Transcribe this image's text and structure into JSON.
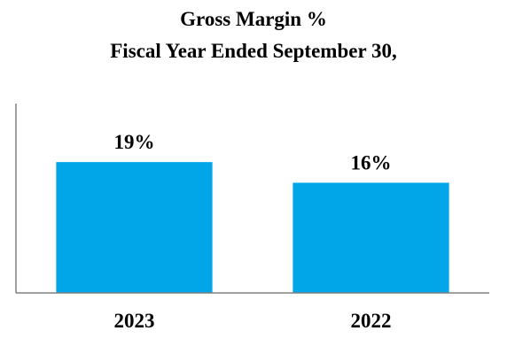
{
  "chart_data": {
    "type": "bar",
    "title": "Gross Margin %",
    "subtitle": "Fiscal Year Ended September 30,",
    "categories": [
      "2023",
      "2022"
    ],
    "values": [
      19,
      16
    ],
    "data_labels": [
      "19%",
      "16%"
    ],
    "ylim": [
      0,
      27.5
    ],
    "xlabel": "",
    "ylabel": "",
    "grid": false,
    "legend": "none",
    "colors": {
      "bar": "#00A6E8",
      "axis": "#808080"
    }
  }
}
